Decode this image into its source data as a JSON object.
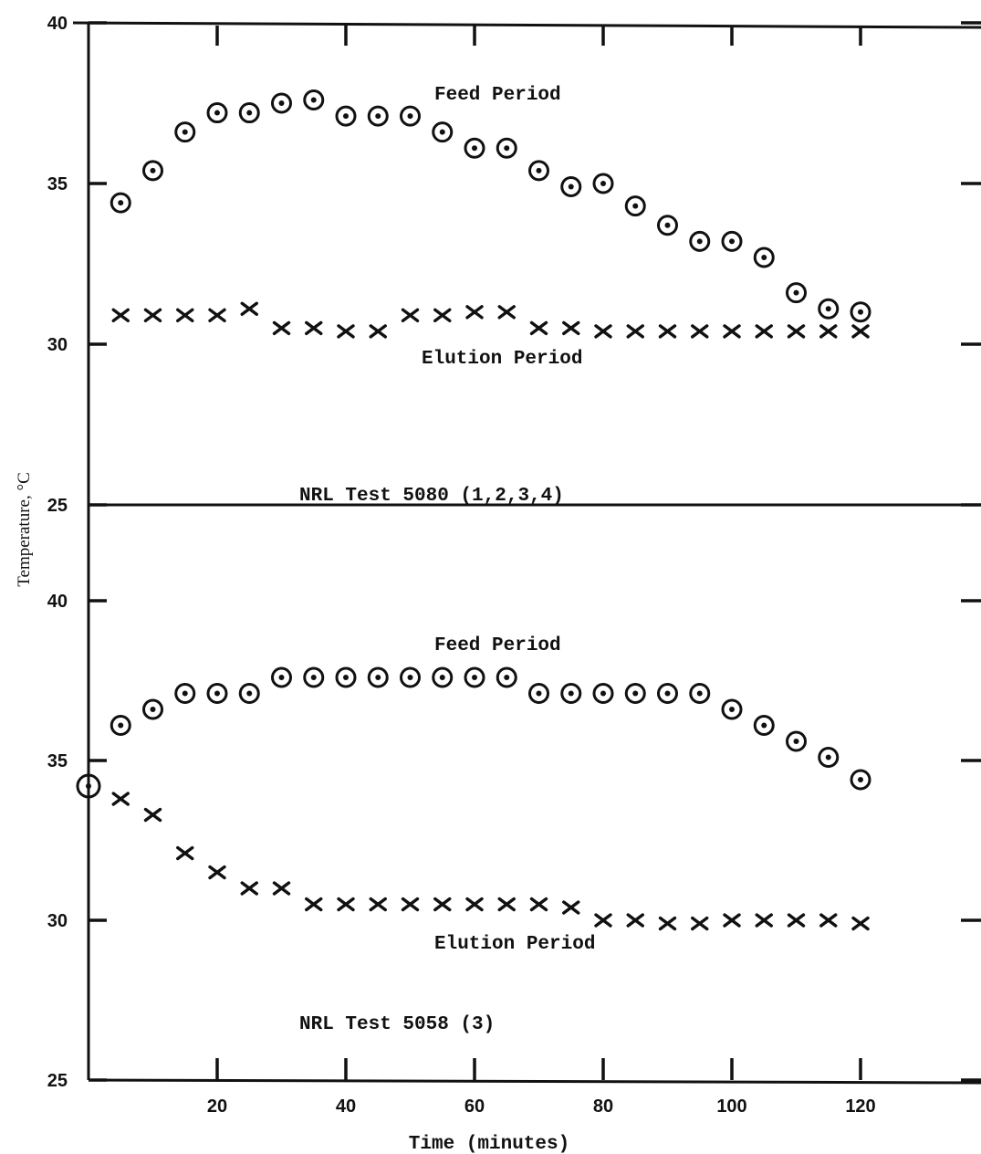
{
  "chart_data": [
    {
      "type": "scatter",
      "title": "NRL Test 5080 (1,2,3,4)",
      "xlabel": "Time (minutes)",
      "ylabel": "Temperature, °C",
      "xlim": [
        0,
        130
      ],
      "ylim": [
        25,
        40
      ],
      "yticks": [
        25,
        30,
        35,
        40
      ],
      "xticks": [
        20,
        40,
        60,
        80,
        100,
        120
      ],
      "grid": false,
      "annotations": [
        "Feed Period",
        "Elution Period"
      ],
      "series": [
        {
          "marker": "circle-dot",
          "x": [
            5,
            10,
            15,
            20,
            25,
            30,
            35,
            40,
            45,
            50,
            55,
            60,
            65,
            70,
            75,
            80,
            85,
            90,
            95,
            100,
            105,
            110,
            115,
            120
          ],
          "values": [
            34.4,
            35.4,
            36.6,
            37.2,
            37.2,
            37.5,
            37.6,
            37.1,
            37.1,
            37.1,
            36.6,
            36.1,
            36.1,
            35.4,
            34.9,
            35.0,
            34.3,
            33.7,
            33.2,
            33.2,
            32.7,
            31.6,
            31.1,
            31.0
          ]
        },
        {
          "marker": "x",
          "x": [
            5,
            10,
            15,
            20,
            25,
            30,
            35,
            40,
            45,
            50,
            55,
            60,
            65,
            70,
            75,
            80,
            85,
            90,
            95,
            100,
            105,
            110,
            115,
            120
          ],
          "values": [
            30.9,
            30.9,
            30.9,
            30.9,
            31.1,
            30.5,
            30.5,
            30.4,
            30.4,
            30.9,
            30.9,
            31.0,
            31.0,
            30.5,
            30.5,
            30.4,
            30.4,
            30.4,
            30.4,
            30.4,
            30.4,
            30.4,
            30.4,
            30.4
          ]
        }
      ]
    },
    {
      "type": "scatter",
      "title": "NRL Test 5058 (3)",
      "xlabel": "Time (minutes)",
      "ylabel": "Temperature, °C",
      "xlim": [
        0,
        130
      ],
      "ylim": [
        25,
        40
      ],
      "yticks": [
        25,
        30,
        35,
        40
      ],
      "xticks": [
        20,
        40,
        60,
        80,
        100,
        120
      ],
      "grid": false,
      "annotations": [
        "Feed Period",
        "Elution Period"
      ],
      "series": [
        {
          "marker": "circle-dot",
          "x": [
            0,
            5,
            10,
            15,
            20,
            25,
            30,
            35,
            40,
            45,
            50,
            55,
            60,
            65,
            70,
            75,
            80,
            85,
            90,
            95,
            100,
            105,
            110,
            115,
            120
          ],
          "values": [
            34.2,
            36.1,
            36.6,
            37.1,
            37.1,
            37.1,
            37.6,
            37.6,
            37.6,
            37.6,
            37.6,
            37.6,
            37.6,
            37.6,
            37.1,
            37.1,
            37.1,
            37.1,
            37.1,
            37.1,
            36.6,
            36.1,
            35.6,
            35.1,
            34.4
          ]
        },
        {
          "marker": "x",
          "x": [
            5,
            10,
            15,
            20,
            25,
            30,
            35,
            40,
            45,
            50,
            55,
            60,
            65,
            70,
            75,
            80,
            85,
            90,
            95,
            100,
            105,
            110,
            115,
            120
          ],
          "values": [
            33.8,
            33.3,
            32.1,
            31.5,
            31.0,
            31.0,
            30.5,
            30.5,
            30.5,
            30.5,
            30.5,
            30.5,
            30.5,
            30.5,
            30.4,
            30.0,
            30.0,
            29.9,
            29.9,
            30.0,
            30.0,
            30.0,
            30.0,
            29.9
          ]
        }
      ]
    }
  ]
}
